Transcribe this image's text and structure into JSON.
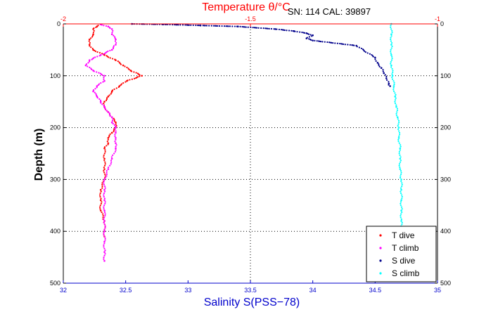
{
  "chart_data": {
    "type": "scatter",
    "title": "SN: 114  CAL: 39897",
    "top_axis": {
      "label": "Temperature θ/°C",
      "range": [
        -2,
        -1
      ],
      "ticks": [
        -2,
        -1.5,
        -1
      ],
      "tick_labels": [
        "-2",
        "-1.5",
        "-1"
      ],
      "color": "#ff0000"
    },
    "bottom_axis": {
      "label": "Salinity S(PSS−78)",
      "range": [
        32,
        35
      ],
      "ticks": [
        32,
        32.5,
        33,
        33.5,
        34,
        34.5,
        35
      ],
      "tick_labels": [
        "32",
        "32.5",
        "33",
        "33.5",
        "34",
        "34.5",
        "35"
      ],
      "color": "#0000cc"
    },
    "y_axis": {
      "label": "Depth (m)",
      "range": [
        0,
        500
      ],
      "inverted": true,
      "ticks": [
        0,
        100,
        200,
        300,
        400,
        500
      ],
      "tick_labels": [
        "0",
        "100",
        "200",
        "300",
        "400",
        "500"
      ]
    },
    "grid": "dotted at depth ticks and salinity 33.5",
    "legend_position": "bottom-right",
    "series": [
      {
        "name": "T dive",
        "axis": "temperature",
        "color": "#ff0000",
        "points": [
          [
            -1.9,
            1
          ],
          [
            -1.91,
            5
          ],
          [
            -1.92,
            10
          ],
          [
            -1.92,
            20
          ],
          [
            -1.93,
            30
          ],
          [
            -1.93,
            40
          ],
          [
            -1.92,
            50
          ],
          [
            -1.89,
            60
          ],
          [
            -1.86,
            70
          ],
          [
            -1.84,
            80
          ],
          [
            -1.82,
            90
          ],
          [
            -1.79,
            100
          ],
          [
            -1.83,
            110
          ],
          [
            -1.85,
            120
          ],
          [
            -1.87,
            130
          ],
          [
            -1.88,
            140
          ],
          [
            -1.89,
            150
          ],
          [
            -1.89,
            160
          ],
          [
            -1.88,
            170
          ],
          [
            -1.87,
            180
          ],
          [
            -1.86,
            190
          ],
          [
            -1.86,
            200
          ],
          [
            -1.87,
            210
          ],
          [
            -1.88,
            220
          ],
          [
            -1.88,
            230
          ],
          [
            -1.89,
            240
          ],
          [
            -1.89,
            260
          ],
          [
            -1.89,
            280
          ],
          [
            -1.89,
            300
          ],
          [
            -1.9,
            320
          ],
          [
            -1.9,
            340
          ],
          [
            -1.9,
            360
          ],
          [
            -1.89,
            380
          ],
          [
            -1.89,
            400
          ],
          [
            -1.89,
            410
          ]
        ]
      },
      {
        "name": "T climb",
        "axis": "temperature",
        "color": "#ff00ff",
        "points": [
          [
            -1.9,
            1
          ],
          [
            -1.88,
            5
          ],
          [
            -1.87,
            10
          ],
          [
            -1.87,
            20
          ],
          [
            -1.86,
            30
          ],
          [
            -1.86,
            40
          ],
          [
            -1.87,
            50
          ],
          [
            -1.9,
            60
          ],
          [
            -1.93,
            70
          ],
          [
            -1.94,
            80
          ],
          [
            -1.92,
            90
          ],
          [
            -1.89,
            100
          ],
          [
            -1.89,
            110
          ],
          [
            -1.91,
            120
          ],
          [
            -1.92,
            130
          ],
          [
            -1.91,
            140
          ],
          [
            -1.9,
            150
          ],
          [
            -1.89,
            160
          ],
          [
            -1.88,
            170
          ],
          [
            -1.87,
            180
          ],
          [
            -1.87,
            190
          ],
          [
            -1.86,
            200
          ],
          [
            -1.86,
            210
          ],
          [
            -1.86,
            220
          ],
          [
            -1.86,
            230
          ],
          [
            -1.86,
            240
          ],
          [
            -1.87,
            260
          ],
          [
            -1.88,
            280
          ],
          [
            -1.89,
            300
          ],
          [
            -1.89,
            320
          ],
          [
            -1.89,
            340
          ],
          [
            -1.89,
            360
          ],
          [
            -1.89,
            380
          ],
          [
            -1.89,
            400
          ],
          [
            -1.89,
            420
          ],
          [
            -1.89,
            440
          ],
          [
            -1.89,
            457
          ]
        ]
      },
      {
        "name": "S dive",
        "axis": "salinity",
        "color": "#00008b",
        "points": [
          [
            32.55,
            0
          ],
          [
            32.8,
            1
          ],
          [
            33.1,
            3
          ],
          [
            33.4,
            5
          ],
          [
            33.7,
            10
          ],
          [
            33.85,
            14
          ],
          [
            33.95,
            18
          ],
          [
            34.0,
            22
          ],
          [
            33.95,
            28
          ],
          [
            34.0,
            32
          ],
          [
            34.35,
            42
          ],
          [
            34.5,
            65
          ],
          [
            34.52,
            75
          ],
          [
            34.55,
            85
          ],
          [
            34.57,
            95
          ],
          [
            34.59,
            105
          ],
          [
            34.61,
            115
          ],
          [
            34.62,
            120
          ]
        ]
      },
      {
        "name": "S climb",
        "axis": "salinity",
        "color": "#00ffff",
        "points": [
          [
            34.63,
            0
          ],
          [
            34.63,
            20
          ],
          [
            34.63,
            40
          ],
          [
            34.63,
            60
          ],
          [
            34.63,
            80
          ],
          [
            34.64,
            100
          ],
          [
            34.65,
            120
          ],
          [
            34.66,
            140
          ],
          [
            34.67,
            160
          ],
          [
            34.68,
            180
          ],
          [
            34.69,
            200
          ],
          [
            34.69,
            220
          ],
          [
            34.7,
            240
          ],
          [
            34.7,
            260
          ],
          [
            34.7,
            280
          ],
          [
            34.71,
            300
          ],
          [
            34.71,
            320
          ],
          [
            34.71,
            340
          ],
          [
            34.71,
            360
          ],
          [
            34.71,
            380
          ],
          [
            34.71,
            400
          ],
          [
            34.72,
            420
          ]
        ]
      }
    ]
  }
}
